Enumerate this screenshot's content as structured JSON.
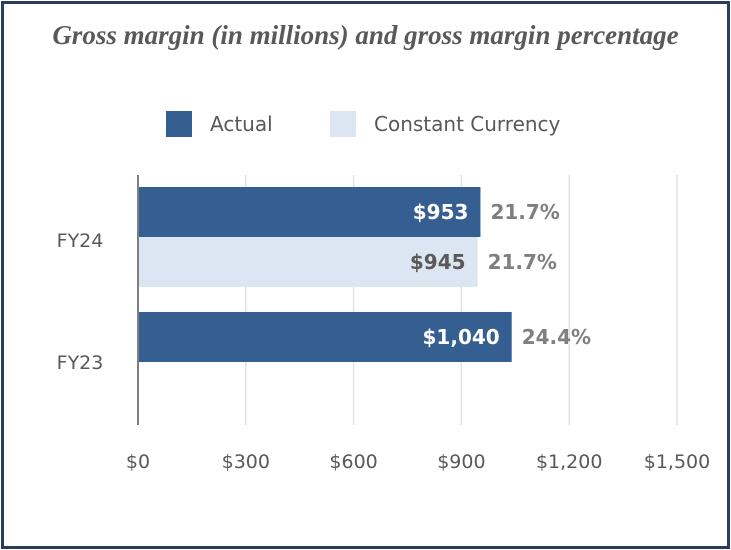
{
  "chart_data": {
    "type": "bar",
    "orientation": "horizontal",
    "title": "Gross margin (in millions) and gross margin percentage",
    "categories": [
      "FY24",
      "FY23"
    ],
    "series": [
      {
        "name": "Actual",
        "color": "#365f91",
        "values": [
          953,
          1040
        ],
        "labels": [
          "$953",
          "$1,040"
        ],
        "percent_labels": [
          "21.7%",
          "24.4%"
        ]
      },
      {
        "name": "Constant Currency",
        "color": "#dce6f2",
        "values": [
          945,
          null
        ],
        "labels": [
          "$945",
          null
        ],
        "percent_labels": [
          "21.7%",
          null
        ]
      }
    ],
    "xlim": [
      0,
      1500
    ],
    "xticks": [
      0,
      300,
      600,
      900,
      1200,
      1500
    ],
    "xtick_labels": [
      "$0",
      "$300",
      "$600",
      "$900",
      "$1,200",
      "$1,500"
    ],
    "grid": true,
    "legend_placement": "top"
  }
}
